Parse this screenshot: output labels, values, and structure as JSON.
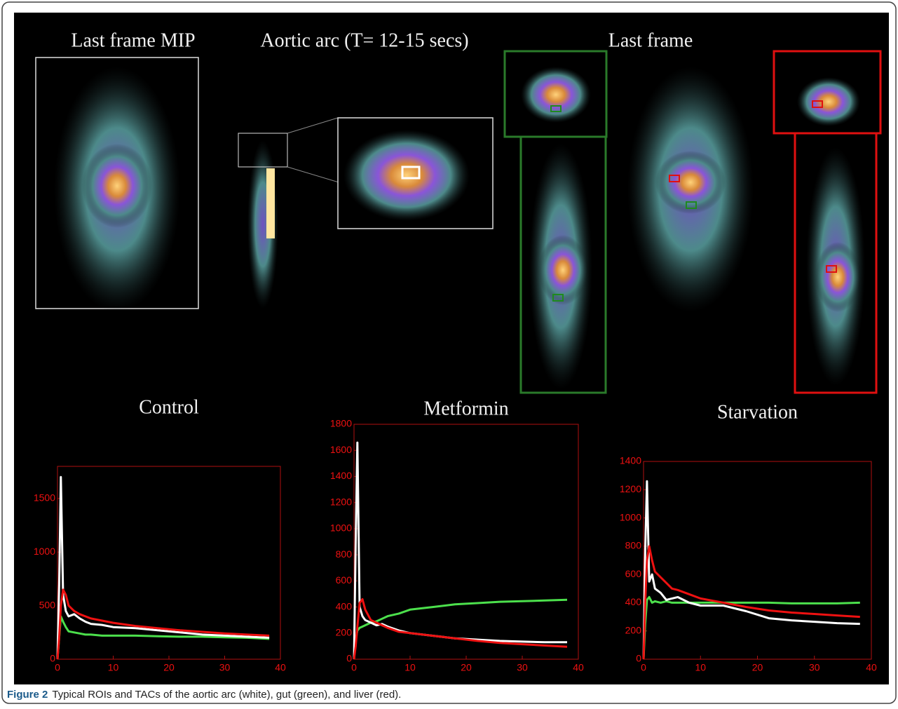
{
  "panel_labels": [
    "Last frame MIP",
    "Aortic arc (T= 12-15 secs)",
    "Last frame"
  ],
  "chart_data": [
    {
      "type": "line",
      "title": "Control",
      "x": [
        0,
        0.3,
        0.6,
        1,
        1.5,
        2,
        3,
        4,
        5,
        6,
        8,
        10,
        14,
        18,
        22,
        26,
        30,
        34,
        38
      ],
      "series": [
        {
          "color": "#4ce04c",
          "values": [
            0,
            200,
            400,
            350,
            300,
            260,
            250,
            240,
            230,
            230,
            220,
            220,
            220,
            215,
            210,
            210,
            205,
            200,
            190
          ]
        },
        {
          "color": "#ffffff",
          "values": [
            0,
            700,
            1700,
            600,
            450,
            400,
            420,
            380,
            350,
            330,
            320,
            300,
            290,
            270,
            250,
            230,
            220,
            210,
            200
          ]
        },
        {
          "color": "#ee1111",
          "values": [
            0,
            200,
            500,
            650,
            600,
            500,
            450,
            420,
            400,
            380,
            360,
            340,
            310,
            290,
            270,
            255,
            240,
            230,
            220
          ]
        }
      ],
      "xlim": [
        0,
        40
      ],
      "xticks": [
        0,
        10,
        20,
        30,
        40
      ],
      "ylim": [
        0,
        1800
      ],
      "yticks": [
        0,
        500,
        1000,
        1500
      ]
    },
    {
      "type": "line",
      "title": "Metformin",
      "x": [
        0,
        0.3,
        0.6,
        1,
        1.5,
        2,
        3,
        4,
        5,
        6,
        8,
        10,
        14,
        18,
        22,
        26,
        30,
        34,
        38
      ],
      "series": [
        {
          "color": "#4ce04c",
          "values": [
            0,
            150,
            220,
            240,
            250,
            260,
            280,
            290,
            310,
            330,
            350,
            380,
            400,
            420,
            430,
            440,
            445,
            450,
            455
          ]
        },
        {
          "color": "#ffffff",
          "values": [
            0,
            900,
            1660,
            400,
            330,
            300,
            280,
            260,
            270,
            250,
            220,
            200,
            180,
            160,
            150,
            140,
            135,
            130,
            130
          ]
        },
        {
          "color": "#ee1111",
          "values": [
            0,
            100,
            250,
            430,
            460,
            380,
            300,
            280,
            260,
            240,
            210,
            200,
            180,
            160,
            140,
            125,
            115,
            105,
            95
          ]
        }
      ],
      "xlim": [
        0,
        40
      ],
      "xticks": [
        0,
        10,
        20,
        30,
        40
      ],
      "ylim": [
        0,
        1800
      ],
      "yticks": [
        0,
        200,
        400,
        600,
        800,
        1000,
        1200,
        1400,
        1600,
        1800
      ]
    },
    {
      "type": "line",
      "title": "Starvation",
      "x": [
        0,
        0.3,
        0.6,
        1,
        1.5,
        2,
        3,
        4,
        5,
        6,
        8,
        10,
        14,
        18,
        22,
        26,
        30,
        34,
        38
      ],
      "series": [
        {
          "color": "#4ce04c",
          "values": [
            0,
            250,
            420,
            440,
            400,
            410,
            400,
            410,
            400,
            400,
            400,
            400,
            400,
            400,
            400,
            395,
            395,
            395,
            400
          ]
        },
        {
          "color": "#ffffff",
          "values": [
            0,
            770,
            1260,
            550,
            600,
            500,
            470,
            420,
            430,
            440,
            400,
            380,
            380,
            340,
            290,
            275,
            265,
            255,
            250
          ]
        },
        {
          "color": "#ee1111",
          "values": [
            0,
            400,
            700,
            800,
            700,
            620,
            580,
            540,
            500,
            490,
            460,
            430,
            400,
            370,
            345,
            330,
            320,
            310,
            300
          ]
        }
      ],
      "xlim": [
        0,
        40
      ],
      "xticks": [
        0,
        10,
        20,
        30,
        40
      ],
      "ylim": [
        0,
        1400
      ],
      "yticks": [
        0,
        200,
        400,
        600,
        800,
        1000,
        1200,
        1400
      ]
    }
  ],
  "caption": {
    "label": "Figure 2",
    "text": "Typical ROIs and TACs of the aortic arc (white), gut (green), and liver (red)."
  }
}
